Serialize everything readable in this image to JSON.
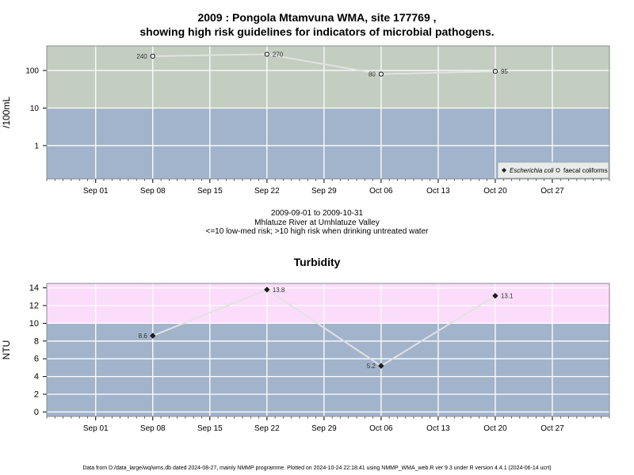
{
  "titles": {
    "main_line1": "2009 : Pongola Mtamvuna WMA, site 177769 ,",
    "main_line2": "showing high risk guidelines for indicators of microbial pathogens.",
    "info_line1": "2009-09-01 to 2009-10-31",
    "info_line2": "Mhlatuze River at Umhlatuze Valley",
    "info_line3": "<=10 low-med risk; >10 high risk when drinking untreated water",
    "turbidity": "Turbidity"
  },
  "footer": "Data from D:/data_large/wq/wms.db dated 2024-08-27, mainly NMMP programme. Plotted on 2024-10-24 22:18:41 using NMMP_WMA_web.R ver 9.3 under R version 4.4.1 (2024-06-14 ucrt)",
  "colors": {
    "high_risk_micro": "#c3cdc0",
    "low_risk": "#a2b4cb",
    "high_risk_turbidity": "#fbdcfa",
    "grid": "#ffffff",
    "series_line": "#e2e2e2"
  },
  "chart_data": [
    {
      "type": "line",
      "ylabel": "/100mL",
      "yscale": "log",
      "yticks": [
        1,
        10,
        100
      ],
      "ytick_labels": [
        "1",
        "10",
        "100"
      ],
      "risk_threshold": 10,
      "xrange": [
        "2009-08-26",
        "2009-11-03"
      ],
      "xticks": [
        "2009-09-01",
        "2009-09-08",
        "2009-09-15",
        "2009-09-22",
        "2009-09-29",
        "2009-10-06",
        "2009-10-13",
        "2009-10-20",
        "2009-10-27"
      ],
      "xtick_labels": [
        "Sep 01",
        "Sep 08",
        "Sep 15",
        "Sep 22",
        "Sep 29",
        "Oct 06",
        "Oct 13",
        "Oct 20",
        "Oct 27"
      ],
      "legend_position": "bottom-right",
      "legend": [
        "Escherichia coli",
        "faecal coliforms"
      ],
      "series": [
        {
          "name": "faecal coliforms",
          "marker": "open-circle",
          "x": [
            "2009-09-08",
            "2009-09-22",
            "2009-10-06",
            "2009-10-20"
          ],
          "values": [
            240,
            270,
            80,
            95
          ],
          "labels": [
            "240",
            "270",
            "80",
            "95"
          ]
        }
      ]
    },
    {
      "type": "line",
      "ylabel": "NTU",
      "ylim": [
        -0.5,
        14.5
      ],
      "yticks": [
        0,
        2,
        4,
        6,
        8,
        10,
        12,
        14
      ],
      "ytick_labels": [
        "0",
        "2",
        "4",
        "6",
        "8",
        "10",
        "12",
        "14"
      ],
      "risk_threshold": 10,
      "xrange": [
        "2009-08-26",
        "2009-11-03"
      ],
      "xticks": [
        "2009-09-01",
        "2009-09-08",
        "2009-09-15",
        "2009-09-22",
        "2009-09-29",
        "2009-10-06",
        "2009-10-13",
        "2009-10-20",
        "2009-10-27"
      ],
      "xtick_labels": [
        "Sep 01",
        "Sep 08",
        "Sep 15",
        "Sep 22",
        "Sep 29",
        "Oct 06",
        "Oct 13",
        "Oct 20",
        "Oct 27"
      ],
      "series": [
        {
          "marker": "filled-diamond",
          "x": [
            "2009-09-08",
            "2009-09-22",
            "2009-10-06",
            "2009-10-20"
          ],
          "values": [
            8.6,
            13.8,
            5.2,
            13.1
          ],
          "labels": [
            "8.6",
            "13.8",
            "5.2",
            "13.1"
          ]
        }
      ]
    }
  ]
}
